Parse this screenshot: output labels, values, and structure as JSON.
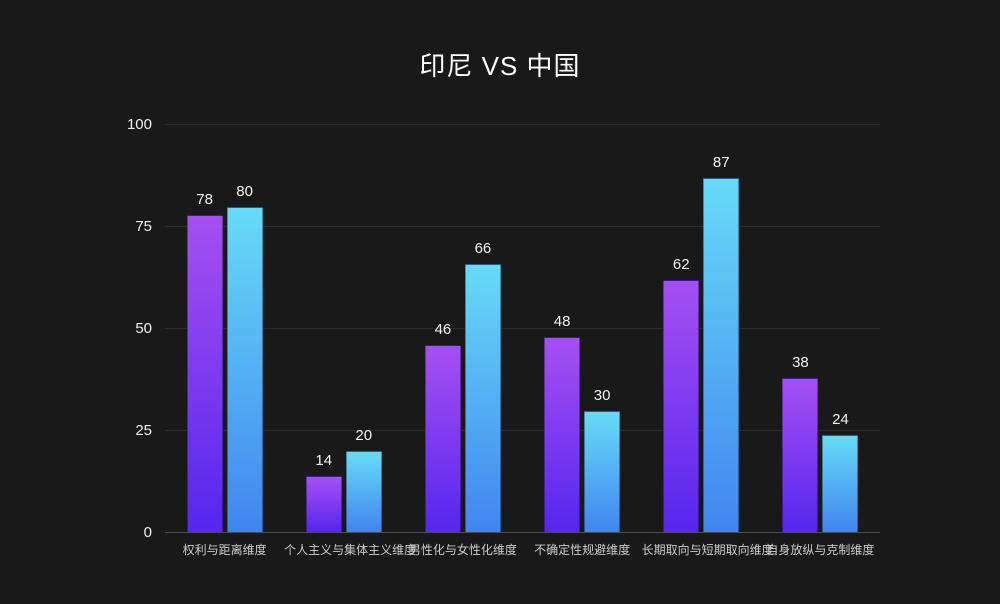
{
  "header": {
    "title": "印尼 VS 中国"
  },
  "chart_data": {
    "type": "bar",
    "title": "印尼 VS 中国",
    "categories": [
      "权利与距离维度",
      "个人主义与集体主义维度",
      "男性化与女性化维度",
      "不确定性规避维度",
      "长期取向与短期取向维度",
      "自身放纵与克制维度"
    ],
    "series": [
      {
        "key": "indonesia",
        "name": "印尼",
        "values": [
          78,
          14,
          46,
          48,
          62,
          38
        ],
        "gradient_top": "#a64ff2",
        "gradient_bottom": "#5526ee"
      },
      {
        "key": "china",
        "name": "中国",
        "values": [
          80,
          20,
          66,
          30,
          87,
          24
        ],
        "gradient_top": "#66dbf7",
        "gradient_bottom": "#4285f0"
      }
    ],
    "xlabel": "",
    "ylabel": "",
    "ylim": [
      0,
      100
    ],
    "yticks": [
      0,
      25,
      50,
      75,
      100
    ],
    "grid": true,
    "legend_position": "none",
    "value_labels": true,
    "colors": {
      "background": "#191919",
      "grid_line": "#2b2b2b",
      "axis_line": "#4f4f4f",
      "title_text": "#ffffff",
      "tick_text": "#f0f0f0",
      "category_text": "#cccccc",
      "value_text": "#f2f2f2"
    }
  }
}
